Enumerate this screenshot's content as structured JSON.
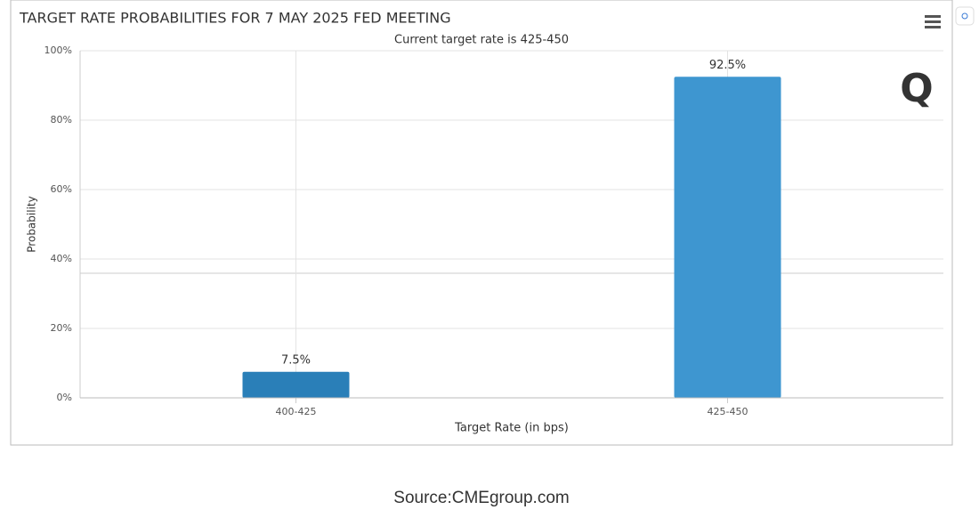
{
  "chart_data": {
    "type": "bar",
    "title": "TARGET RATE PROBABILITIES FOR 7 MAY 2025 FED MEETING",
    "subtitle": "Current target rate is 425-450",
    "y_label": "Probability",
    "x_label": "Target Rate (in bps)",
    "categories": [
      "400-425",
      "425-450"
    ],
    "values": [
      7.5,
      92.5
    ],
    "value_labels": [
      "7.5%",
      "92.5%"
    ],
    "colors": [
      "#2a7fb8",
      "#3e96d0"
    ],
    "ylim": [
      0,
      100
    ],
    "yticks": [
      {
        "value": 0,
        "label": "0%"
      },
      {
        "value": 20,
        "label": "20%"
      },
      {
        "value": 40,
        "label": "40%"
      },
      {
        "value": 60,
        "label": "60%"
      },
      {
        "value": 80,
        "label": "80%"
      },
      {
        "value": 100,
        "label": "100%"
      }
    ],
    "grid": true
  },
  "source": "Source:CMEgroup.com"
}
